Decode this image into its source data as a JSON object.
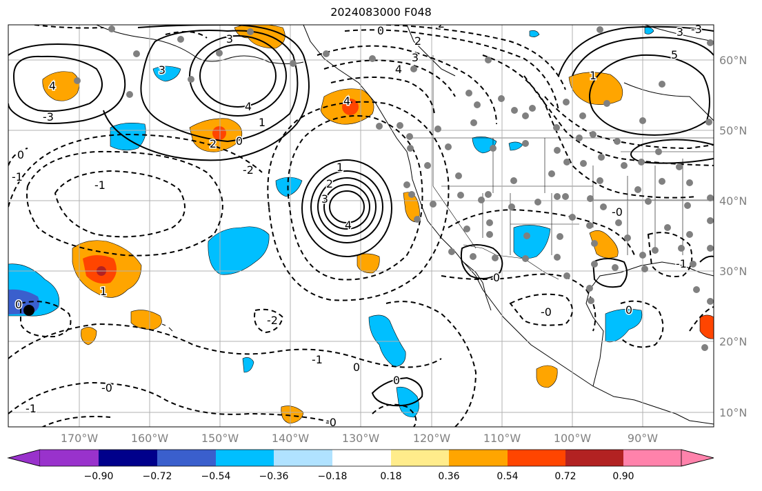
{
  "title": "2024083000 F048",
  "lon_labels": [
    "170°W",
    "160°W",
    "150°W",
    "140°W",
    "130°W",
    "120°W",
    "110°W",
    "100°W",
    "90°W"
  ],
  "lat_labels": [
    "60°N",
    "50°N",
    "40°N",
    "30°N",
    "20°N",
    "10°N"
  ],
  "colorbar": {
    "ticks": [
      "−0.90",
      "−0.72",
      "−0.54",
      "−0.36",
      "−0.18",
      "0.18",
      "0.36",
      "0.54",
      "0.72",
      "0.90"
    ],
    "colors": [
      "#9932cc",
      "#00008b",
      "#3a5fcd",
      "#00bfff",
      "#b0e2ff",
      "#ffffff",
      "#ffec8b",
      "#ffa500",
      "#ff4500",
      "#b22222",
      "#ff82ab"
    ]
  },
  "contour_labels": [
    "0",
    "2",
    "3",
    "4",
    "-1",
    "-2",
    "1",
    "2",
    "3",
    "4",
    "-0",
    "0",
    "-1",
    "-0",
    "5",
    "3",
    "4",
    "1",
    "-3",
    "0",
    "0",
    "-2",
    "-1",
    "0",
    "0",
    "-1",
    "-0",
    "0",
    "-0",
    "4",
    "3",
    "2",
    "1",
    "2",
    "0",
    "-3",
    "-1",
    "3",
    "4",
    "1"
  ],
  "colors": {
    "line": "#000000",
    "grid": "#b0b0b0",
    "marker": "#808080"
  }
}
